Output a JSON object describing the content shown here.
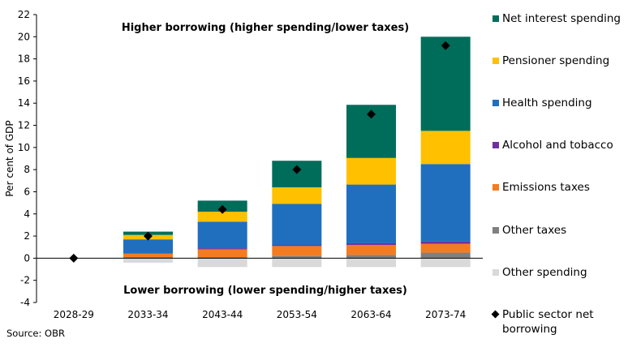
{
  "chart_data": {
    "type": "bar",
    "stacked": true,
    "categories": [
      "2028-29",
      "2033-34",
      "2043-44",
      "2053-54",
      "2063-64",
      "2073-74"
    ],
    "ylabel": "Per cent of GDP",
    "ylim": [
      -4,
      22
    ],
    "yticks": [
      -4,
      -2,
      0,
      2,
      4,
      6,
      8,
      10,
      12,
      14,
      16,
      18,
      20,
      22
    ],
    "grid": false,
    "legend_position": "right",
    "annotations": {
      "top": "Higher borrowing (higher spending/lower taxes)",
      "bottom": "Lower borrowing (lower spending/higher taxes)"
    },
    "series": [
      {
        "name": "Other spending",
        "color": "#d9d9d9",
        "values": [
          0,
          -0.4,
          -0.8,
          -0.8,
          -0.8,
          -0.8
        ]
      },
      {
        "name": "Other taxes",
        "color": "#808080",
        "values": [
          0,
          0.1,
          0.1,
          0.2,
          0.3,
          0.5
        ]
      },
      {
        "name": "Emissions taxes",
        "color": "#f47c20",
        "values": [
          0,
          0.3,
          0.7,
          0.9,
          0.9,
          0.8
        ]
      },
      {
        "name": "Alcohol and tobacco",
        "color": "#7030a0",
        "values": [
          0,
          0.05,
          0.1,
          0.1,
          0.15,
          0.2
        ]
      },
      {
        "name": "Health spending",
        "color": "#1f6fbe",
        "values": [
          0,
          1.25,
          2.4,
          3.7,
          5.3,
          7.0
        ]
      },
      {
        "name": "Pensioner spending",
        "color": "#ffc000",
        "values": [
          0,
          0.4,
          0.9,
          1.5,
          2.4,
          3.0
        ]
      },
      {
        "name": "Net interest spending",
        "color": "#006d5b",
        "values": [
          0,
          0.3,
          1.0,
          2.4,
          4.8,
          8.5
        ]
      }
    ],
    "psnb": {
      "name": "Public sector net borrowing",
      "color": "#000000",
      "values": [
        0,
        2.0,
        4.4,
        8.0,
        13.0,
        19.2
      ]
    }
  },
  "legend": [
    {
      "label": "Net interest spending",
      "color": "#006d5b",
      "marker": "square"
    },
    {
      "label": "Pensioner spending",
      "color": "#ffc000",
      "marker": "square"
    },
    {
      "label": "Health spending",
      "color": "#1f6fbe",
      "marker": "square"
    },
    {
      "label": "Alcohol and tobacco",
      "color": "#7030a0",
      "marker": "square"
    },
    {
      "label": "Emissions taxes",
      "color": "#f47c20",
      "marker": "square"
    },
    {
      "label": "Other taxes",
      "color": "#808080",
      "marker": "square"
    },
    {
      "label": "Other spending",
      "color": "#d9d9d9",
      "marker": "square"
    },
    {
      "label": "Public sector net borrowing",
      "color": "#000000",
      "marker": "diamond"
    }
  ],
  "source": "Source: OBR"
}
